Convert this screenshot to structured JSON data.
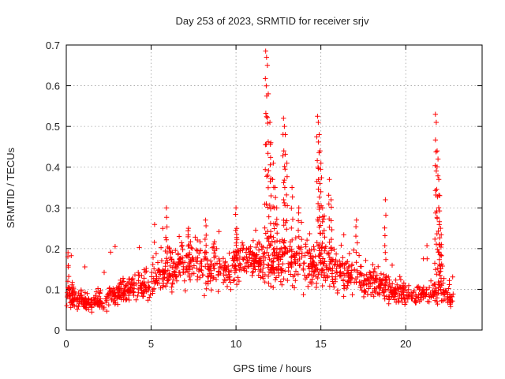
{
  "chart_data": {
    "type": "scatter",
    "title": "Day 253 of 2023, SRMTID for receiver srjv",
    "xlabel": "GPS time / hours",
    "ylabel": "SRMTID / TECUs",
    "xlim": [
      0,
      24.5
    ],
    "ylim": [
      0,
      0.7
    ],
    "xticks": [
      0,
      5,
      10,
      15,
      20
    ],
    "yticks": [
      0,
      0.1,
      0.2,
      0.3,
      0.4,
      0.5,
      0.6,
      0.7
    ],
    "xtick_labels": [
      "0",
      "5",
      "10",
      "15",
      "20"
    ],
    "ytick_labels": [
      "0",
      "0.1",
      "0.2",
      "0.3",
      "0.4",
      "0.5",
      "0.6",
      "0.7"
    ],
    "grid": true,
    "marker": "+",
    "series": [
      {
        "name": "SRMTID",
        "color": "#ff0000",
        "profile": [
          [
            0.0,
            0.09
          ],
          [
            0.5,
            0.08
          ],
          [
            1.0,
            0.07
          ],
          [
            1.5,
            0.065
          ],
          [
            2.0,
            0.075
          ],
          [
            2.5,
            0.08
          ],
          [
            3.0,
            0.09
          ],
          [
            3.5,
            0.1
          ],
          [
            4.0,
            0.11
          ],
          [
            4.5,
            0.11
          ],
          [
            5.0,
            0.12
          ],
          [
            5.5,
            0.14
          ],
          [
            6.0,
            0.15
          ],
          [
            6.5,
            0.16
          ],
          [
            7.0,
            0.16
          ],
          [
            7.5,
            0.17
          ],
          [
            8.0,
            0.16
          ],
          [
            8.5,
            0.15
          ],
          [
            9.0,
            0.15
          ],
          [
            9.5,
            0.15
          ],
          [
            10.0,
            0.17
          ],
          [
            10.5,
            0.17
          ],
          [
            11.0,
            0.17
          ],
          [
            11.5,
            0.17
          ],
          [
            12.0,
            0.16
          ],
          [
            12.5,
            0.16
          ],
          [
            13.0,
            0.17
          ],
          [
            13.5,
            0.18
          ],
          [
            14.0,
            0.17
          ],
          [
            14.5,
            0.16
          ],
          [
            15.0,
            0.16
          ],
          [
            15.5,
            0.15
          ],
          [
            16.0,
            0.15
          ],
          [
            16.5,
            0.14
          ],
          [
            17.0,
            0.13
          ],
          [
            17.5,
            0.12
          ],
          [
            18.0,
            0.12
          ],
          [
            18.5,
            0.11
          ],
          [
            19.0,
            0.1
          ],
          [
            19.5,
            0.09
          ],
          [
            20.0,
            0.09
          ],
          [
            20.5,
            0.09
          ],
          [
            21.0,
            0.09
          ],
          [
            21.5,
            0.09
          ],
          [
            22.0,
            0.1
          ],
          [
            22.5,
            0.08
          ],
          [
            22.8,
            0.07
          ]
        ],
        "spikes": [
          [
            0.1,
            0.19
          ],
          [
            5.9,
            0.3
          ],
          [
            7.2,
            0.25
          ],
          [
            8.2,
            0.27
          ],
          [
            10.0,
            0.3
          ],
          [
            11.75,
            0.685
          ],
          [
            11.8,
            0.67
          ],
          [
            11.85,
            0.65
          ],
          [
            11.9,
            0.58
          ],
          [
            12.0,
            0.51
          ],
          [
            12.05,
            0.46
          ],
          [
            12.2,
            0.41
          ],
          [
            12.3,
            0.35
          ],
          [
            12.4,
            0.3
          ],
          [
            12.8,
            0.52
          ],
          [
            12.85,
            0.5
          ],
          [
            12.9,
            0.48
          ],
          [
            13.0,
            0.41
          ],
          [
            13.3,
            0.35
          ],
          [
            13.7,
            0.3
          ],
          [
            14.8,
            0.525
          ],
          [
            14.85,
            0.51
          ],
          [
            14.9,
            0.48
          ],
          [
            14.95,
            0.44
          ],
          [
            15.0,
            0.41
          ],
          [
            15.1,
            0.3
          ],
          [
            15.2,
            0.28
          ],
          [
            15.5,
            0.37
          ],
          [
            15.6,
            0.32
          ],
          [
            17.1,
            0.27
          ],
          [
            18.8,
            0.32
          ],
          [
            21.75,
            0.53
          ],
          [
            21.8,
            0.51
          ],
          [
            21.85,
            0.44
          ],
          [
            21.9,
            0.42
          ],
          [
            21.95,
            0.37
          ],
          [
            22.0,
            0.33
          ],
          [
            22.05,
            0.25
          ],
          [
            22.1,
            0.21
          ]
        ],
        "x_range": [
          0,
          22.8
        ]
      }
    ]
  }
}
